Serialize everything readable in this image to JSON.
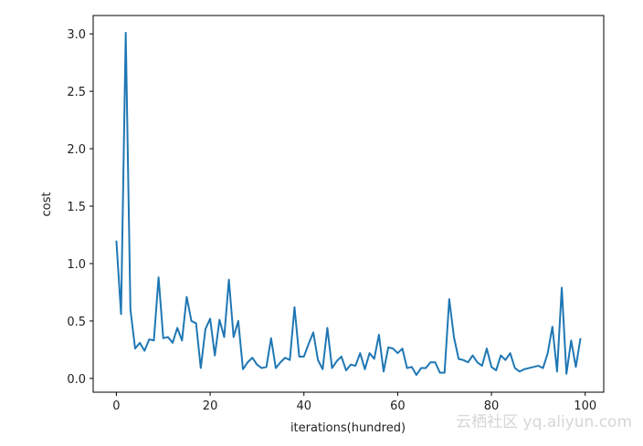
{
  "chart_data": {
    "type": "line",
    "xlabel": "iterations(hundred)",
    "ylabel": "cost",
    "watermark": "云栖社区 yq.aliyun.com",
    "x": [
      0,
      1,
      2,
      3,
      4,
      5,
      6,
      7,
      8,
      9,
      10,
      11,
      12,
      13,
      14,
      15,
      16,
      17,
      18,
      19,
      20,
      21,
      22,
      23,
      24,
      25,
      26,
      27,
      28,
      29,
      30,
      31,
      32,
      33,
      34,
      35,
      36,
      37,
      38,
      39,
      40,
      41,
      42,
      43,
      44,
      45,
      46,
      47,
      48,
      49,
      50,
      51,
      52,
      53,
      54,
      55,
      56,
      57,
      58,
      59,
      60,
      61,
      62,
      63,
      64,
      65,
      66,
      67,
      68,
      69,
      70,
      71,
      72,
      73,
      74,
      75,
      76,
      77,
      78,
      79,
      80,
      81,
      82,
      83,
      84,
      85,
      86,
      87,
      88,
      89,
      90,
      91,
      92,
      93,
      94,
      95,
      96,
      97,
      98,
      99
    ],
    "series": [
      {
        "color": "#1f77b4",
        "values": [
          1.2,
          0.56,
          3.01,
          0.6,
          0.26,
          0.31,
          0.24,
          0.34,
          0.33,
          0.88,
          0.35,
          0.36,
          0.31,
          0.44,
          0.33,
          0.71,
          0.5,
          0.48,
          0.09,
          0.43,
          0.52,
          0.2,
          0.51,
          0.36,
          0.86,
          0.36,
          0.5,
          0.08,
          0.14,
          0.18,
          0.12,
          0.09,
          0.1,
          0.35,
          0.09,
          0.14,
          0.18,
          0.16,
          0.62,
          0.19,
          0.19,
          0.3,
          0.4,
          0.16,
          0.08,
          0.44,
          0.09,
          0.15,
          0.19,
          0.07,
          0.12,
          0.11,
          0.22,
          0.08,
          0.22,
          0.17,
          0.38,
          0.06,
          0.27,
          0.26,
          0.22,
          0.26,
          0.09,
          0.1,
          0.03,
          0.09,
          0.09,
          0.14,
          0.14,
          0.05,
          0.05,
          0.69,
          0.36,
          0.17,
          0.16,
          0.14,
          0.2,
          0.14,
          0.11,
          0.26,
          0.1,
          0.07,
          0.2,
          0.16,
          0.22,
          0.09,
          0.06,
          0.08,
          0.09,
          0.1,
          0.11,
          0.09,
          0.22,
          0.45,
          0.06,
          0.79,
          0.04,
          0.33,
          0.1,
          0.35
        ]
      }
    ],
    "xlim": [
      -4.95,
      103.95
    ],
    "ylim": [
      -0.12,
      3.16
    ],
    "xticks": [
      0,
      20,
      40,
      60,
      80,
      100
    ],
    "yticks": [
      {
        "value": 0,
        "label": "0.0"
      },
      {
        "value": 0.5,
        "label": "0.5"
      },
      {
        "value": 1,
        "label": "1.0"
      },
      {
        "value": 1.5,
        "label": "1.5"
      },
      {
        "value": 2,
        "label": "2.0"
      },
      {
        "value": 2.5,
        "label": "2.5"
      },
      {
        "value": 3,
        "label": "3.0"
      }
    ]
  }
}
